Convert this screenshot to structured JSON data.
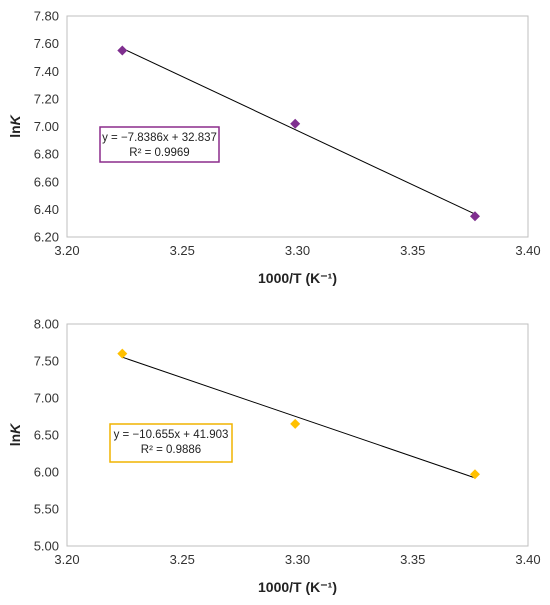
{
  "chart_data": [
    {
      "type": "scatter",
      "title": "",
      "xlabel": "1000/T (K⁻¹)",
      "ylabel_prefix": "ln",
      "ylabel_italic": "K",
      "xlim": [
        3.2,
        3.4
      ],
      "ylim": [
        6.2,
        7.8
      ],
      "x_ticks": [
        "3.20",
        "3.25",
        "3.30",
        "3.35",
        "3.40"
      ],
      "y_ticks": [
        "6.20",
        "6.40",
        "6.60",
        "6.80",
        "7.00",
        "7.20",
        "7.40",
        "7.60",
        "7.80"
      ],
      "marker_color": "#7f2f8f",
      "series": [
        {
          "x": [
            3.224,
            3.299,
            3.377
          ],
          "y": [
            7.55,
            7.02,
            6.35
          ]
        }
      ],
      "trendline": {
        "slope": -7.8386,
        "intercept": 32.837
      },
      "equation": "y = −7.8386x + 32.837",
      "r2": "R² = 0.9969",
      "box_color": "#8b2c8b",
      "legend_position": "left-middle",
      "grid": false
    },
    {
      "type": "scatter",
      "title": "",
      "xlabel": "1000/T (K⁻¹)",
      "ylabel_prefix": "ln",
      "ylabel_italic": "K",
      "xlim": [
        3.2,
        3.4
      ],
      "ylim": [
        5.0,
        8.0
      ],
      "x_ticks": [
        "3.20",
        "3.25",
        "3.30",
        "3.35",
        "3.40"
      ],
      "y_ticks": [
        "5.00",
        "5.50",
        "6.00",
        "6.50",
        "7.00",
        "7.50",
        "8.00"
      ],
      "marker_color": "#ffc000",
      "series": [
        {
          "x": [
            3.224,
            3.299,
            3.377
          ],
          "y": [
            7.6,
            6.65,
            5.97
          ]
        }
      ],
      "trendline": {
        "slope": -10.655,
        "intercept": 41.903
      },
      "equation": "y = −10.655x + 41.903",
      "r2": "R² = 0.9886",
      "box_color": "#f0b400",
      "legend_position": "left-middle",
      "grid": false
    }
  ]
}
